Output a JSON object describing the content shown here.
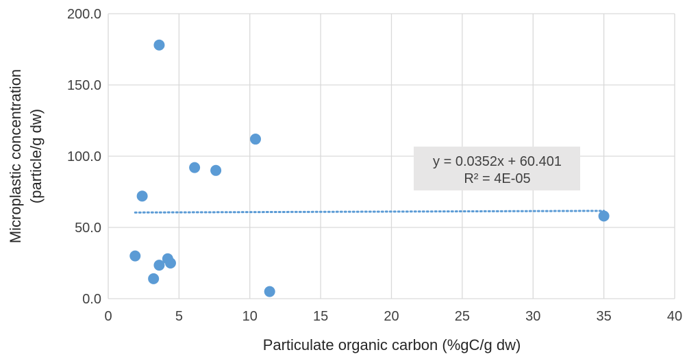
{
  "chart_data": {
    "type": "scatter",
    "title": "",
    "xlabel": "Particulate organic carbon (%gC/g dw)",
    "ylabel": [
      "Microplastic concentration",
      "(particle/g dw)"
    ],
    "xlim": [
      0,
      40
    ],
    "ylim": [
      0,
      200
    ],
    "x_ticks": [
      "0",
      "5",
      "10",
      "15",
      "20",
      "25",
      "30",
      "35",
      "40"
    ],
    "y_ticks": [
      "0.0",
      "50.0",
      "100.0",
      "150.0",
      "200.0"
    ],
    "grid": true,
    "points": [
      {
        "x": 3.6,
        "y": 178
      },
      {
        "x": 10.4,
        "y": 112
      },
      {
        "x": 6.1,
        "y": 92
      },
      {
        "x": 7.6,
        "y": 90
      },
      {
        "x": 2.4,
        "y": 72
      },
      {
        "x": 35.0,
        "y": 58
      },
      {
        "x": 1.9,
        "y": 30
      },
      {
        "x": 4.2,
        "y": 28
      },
      {
        "x": 4.4,
        "y": 25
      },
      {
        "x": 3.6,
        "y": 23.5
      },
      {
        "x": 3.2,
        "y": 14
      },
      {
        "x": 11.4,
        "y": 5
      }
    ],
    "trendline": {
      "style": "dotted",
      "slope": 0.0352,
      "intercept": 60.401,
      "x_range": [
        1.9,
        35.0
      ],
      "equation": "y = 0.0352x  + 60.401",
      "r_squared": "R² = 4E-05"
    },
    "colors": {
      "point": "#5b9bd5",
      "trendline": "#5b9bd5",
      "grid": "#d9d9d9",
      "label_box": "#e7e6e6"
    }
  }
}
